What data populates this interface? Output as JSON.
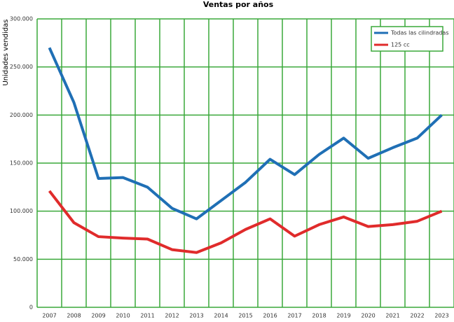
{
  "chart_data": {
    "type": "line",
    "title": "Ventas por años",
    "y_label": "Unidades vendidas",
    "categories": [
      "2007",
      "2008",
      "2009",
      "2010",
      "2011",
      "2012",
      "2013",
      "2014",
      "2015",
      "2016",
      "2017",
      "2018",
      "2019",
      "2020",
      "2021",
      "2022",
      "2023"
    ],
    "series": [
      {
        "name": "Todas las cilindradas",
        "color": "#1f6fb5",
        "values": [
          270000,
          213000,
          134000,
          135000,
          125000,
          103000,
          92000,
          111000,
          130000,
          154000,
          138000,
          159000,
          176000,
          155000,
          166000,
          176000,
          200000
        ]
      },
      {
        "name": "125 cc",
        "color": "#e02b2b",
        "values": [
          121000,
          88000,
          73500,
          72000,
          71000,
          60000,
          57000,
          67000,
          81000,
          92000,
          74000,
          86000,
          94000,
          84000,
          86000,
          89500,
          100000
        ]
      }
    ],
    "ylim": [
      0,
      300000
    ],
    "yticks": [
      0,
      {
        "value": 50000,
        "label": "50.000"
      },
      {
        "value": 100000,
        "label": "100.000"
      },
      {
        "value": 150000,
        "label": "150.000"
      },
      {
        "value": 200000,
        "label": "200.000"
      },
      {
        "value": 250000,
        "label": "250.000"
      },
      {
        "value": 300000,
        "label": "300.000"
      }
    ],
    "grid": true,
    "grid_color": "#3aa83a",
    "legend": "upper right"
  }
}
